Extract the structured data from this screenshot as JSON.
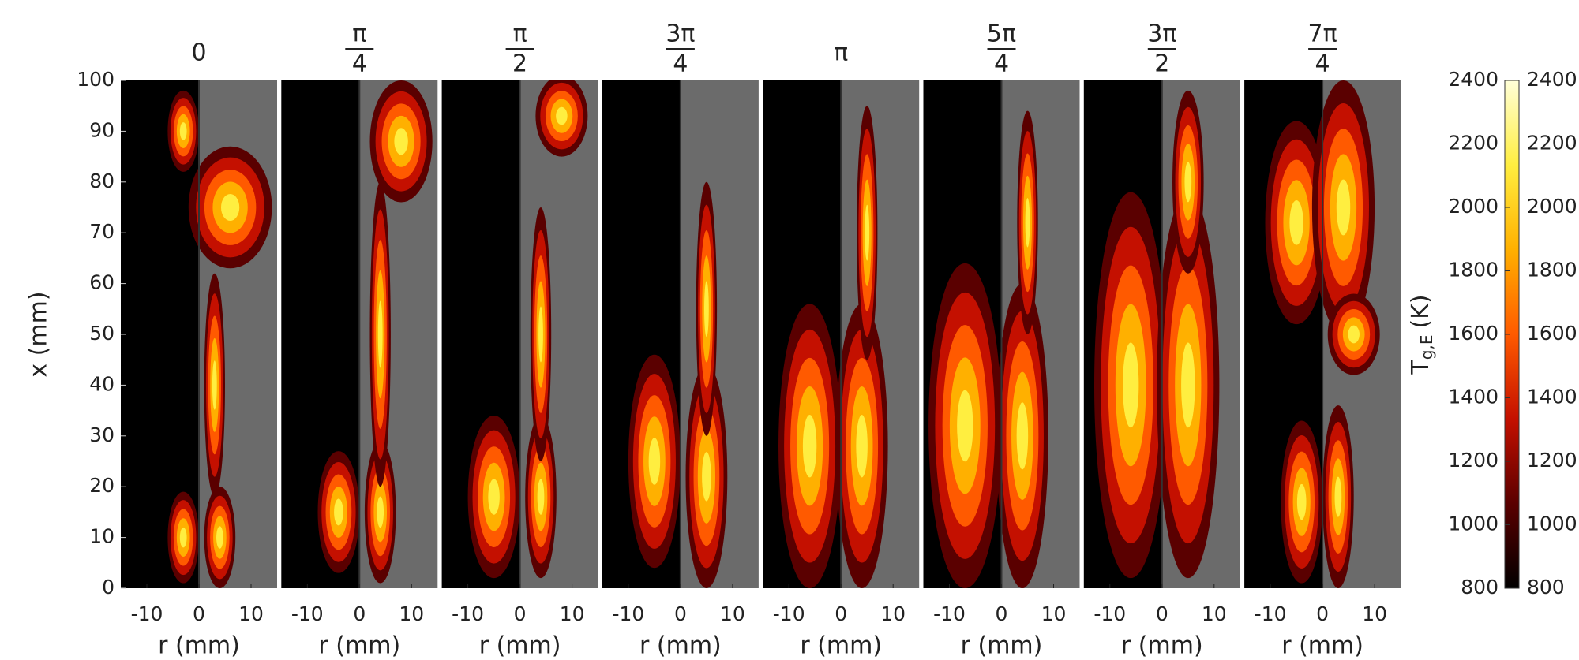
{
  "chart_data": {
    "type": "heatmap",
    "panel_titles": [
      "0",
      {
        "numerator": "π",
        "denominator": "4"
      },
      {
        "numerator": "π",
        "denominator": "2"
      },
      {
        "numerator": "3π",
        "denominator": "4"
      },
      "π",
      {
        "numerator": "5π",
        "denominator": "4"
      },
      {
        "numerator": "3π",
        "denominator": "2"
      },
      {
        "numerator": "7π",
        "denominator": "4"
      }
    ],
    "xlabel": "r (mm)",
    "ylabel": "x (mm)",
    "xlim": [
      -15,
      15
    ],
    "xticks": [
      -10,
      0,
      10
    ],
    "ylim": [
      0,
      100
    ],
    "yticks": [
      0,
      10,
      20,
      30,
      40,
      50,
      60,
      70,
      80,
      90,
      100
    ],
    "colorbar": {
      "label": {
        "main": "T",
        "subscript": "g,E",
        "unit": "(K)"
      },
      "lim": [
        800,
        2400
      ],
      "ticks": [
        800,
        1000,
        1200,
        1400,
        1600,
        1800,
        2000,
        2200,
        2400
      ],
      "colors": [
        "#000000",
        "#5a0000",
        "#c41000",
        "#ff5a00",
        "#ffb000",
        "#ffee40",
        "#ffffd8"
      ]
    }
  }
}
